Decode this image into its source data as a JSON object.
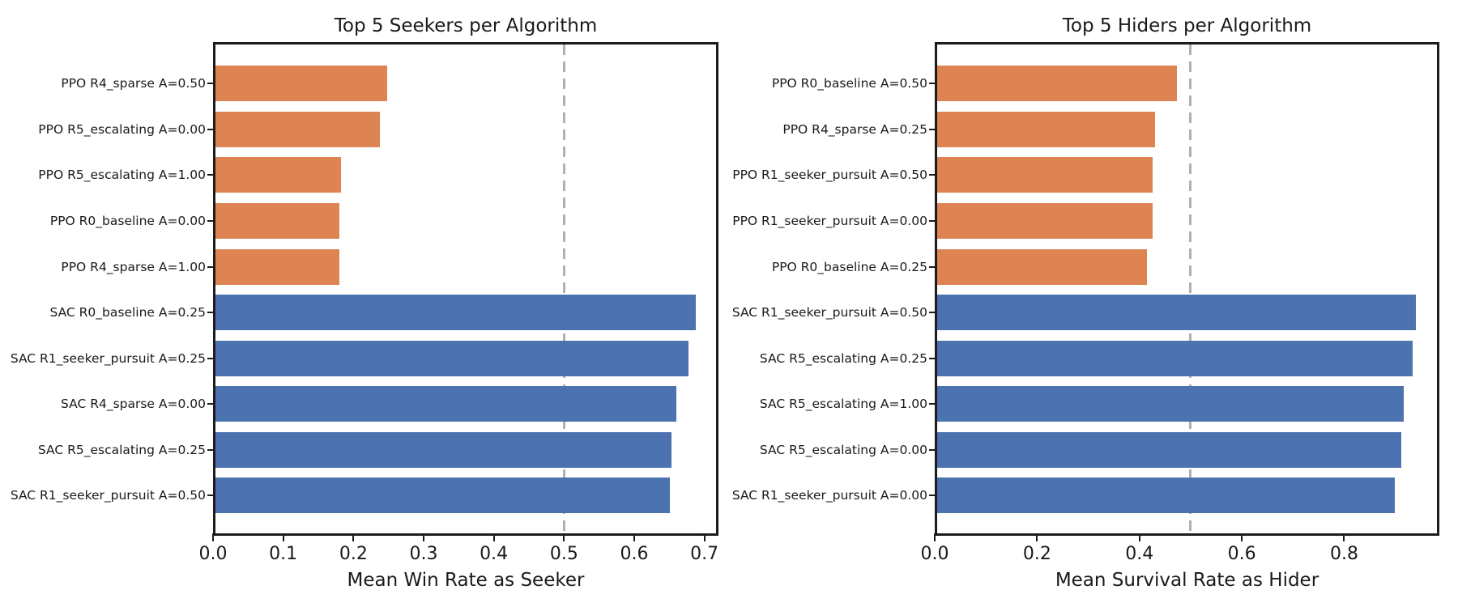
{
  "colors": {
    "ppo_bar": "#DD8452",
    "sac_bar": "#4C72B0",
    "reference_line": "#B0B0B0",
    "spine": "#1C1C1C",
    "text": "#1A1A1A",
    "background": "#FFFFFF"
  },
  "chart_data": [
    {
      "type": "bar",
      "orientation": "horizontal",
      "title": "Top 5 Seekers per Algorithm",
      "xlabel": "Mean Win Rate as Seeker",
      "ylabel": "",
      "xlim": [
        0,
        0.72
      ],
      "xticks": [
        "0.0",
        "0.1",
        "0.2",
        "0.3",
        "0.4",
        "0.5",
        "0.6",
        "0.7"
      ],
      "grid": false,
      "legend": "none",
      "reference_line_x": 0.5,
      "bars": [
        {
          "label": "PPO R4_sparse A=0.50",
          "value": 0.248,
          "group": "PPO"
        },
        {
          "label": "PPO R5_escalating A=0.00",
          "value": 0.238,
          "group": "PPO"
        },
        {
          "label": "PPO R5_escalating A=1.00",
          "value": 0.182,
          "group": "PPO"
        },
        {
          "label": "PPO R0_baseline A=0.00",
          "value": 0.18,
          "group": "PPO"
        },
        {
          "label": "PPO R4_sparse A=1.00",
          "value": 0.18,
          "group": "PPO"
        },
        {
          "label": "SAC R0_baseline A=0.25",
          "value": 0.688,
          "group": "SAC"
        },
        {
          "label": "SAC R1_seeker_pursuit A=0.25",
          "value": 0.677,
          "group": "SAC"
        },
        {
          "label": "SAC R4_sparse A=0.00",
          "value": 0.66,
          "group": "SAC"
        },
        {
          "label": "SAC R5_escalating A=0.25",
          "value": 0.653,
          "group": "SAC"
        },
        {
          "label": "SAC R1_seeker_pursuit A=0.50",
          "value": 0.651,
          "group": "SAC"
        }
      ]
    },
    {
      "type": "bar",
      "orientation": "horizontal",
      "title": "Top 5 Hiders per Algorithm",
      "xlabel": "Mean Survival Rate as Hider",
      "ylabel": "",
      "xlim": [
        0,
        0.986
      ],
      "xticks": [
        "0.0",
        "0.2",
        "0.4",
        "0.6",
        "0.8"
      ],
      "grid": false,
      "legend": "none",
      "reference_line_x": 0.5,
      "bars": [
        {
          "label": "PPO R0_baseline A=0.50",
          "value": 0.474,
          "group": "PPO"
        },
        {
          "label": "PPO R4_sparse A=0.25",
          "value": 0.43,
          "group": "PPO"
        },
        {
          "label": "PPO R1_seeker_pursuit A=0.50",
          "value": 0.426,
          "group": "PPO"
        },
        {
          "label": "PPO R1_seeker_pursuit A=0.00",
          "value": 0.425,
          "group": "PPO"
        },
        {
          "label": "PPO R0_baseline A=0.25",
          "value": 0.414,
          "group": "PPO"
        },
        {
          "label": "SAC R1_seeker_pursuit A=0.50",
          "value": 0.94,
          "group": "SAC"
        },
        {
          "label": "SAC R5_escalating A=0.25",
          "value": 0.933,
          "group": "SAC"
        },
        {
          "label": "SAC R5_escalating A=1.00",
          "value": 0.917,
          "group": "SAC"
        },
        {
          "label": "SAC R5_escalating A=0.00",
          "value": 0.911,
          "group": "SAC"
        },
        {
          "label": "SAC R1_seeker_pursuit A=0.00",
          "value": 0.899,
          "group": "SAC"
        }
      ]
    }
  ]
}
